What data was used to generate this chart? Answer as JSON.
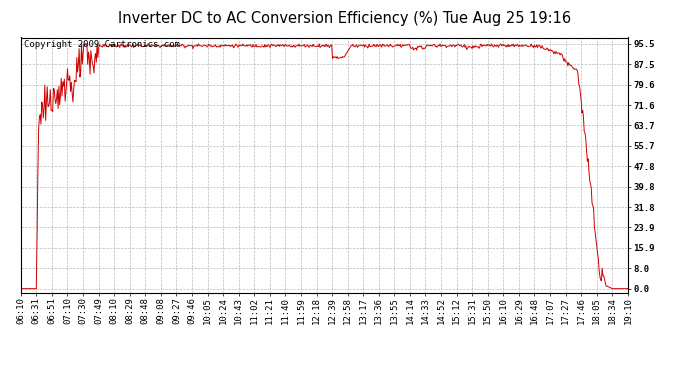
{
  "title": "Inverter DC to AC Conversion Efficiency (%) Tue Aug 25 19:16",
  "copyright": "Copyright 2009 Cartronics.com",
  "background_color": "#ffffff",
  "plot_bg_color": "#ffffff",
  "line_color": "#cc0000",
  "line_width": 0.7,
  "yticks": [
    0.0,
    8.0,
    15.9,
    23.9,
    31.8,
    39.8,
    47.8,
    55.7,
    63.7,
    71.6,
    79.6,
    87.5,
    95.5
  ],
  "ymin": -1.5,
  "ymax": 98.0,
  "grid_color": "#aaaaaa",
  "grid_style": "--",
  "title_fontsize": 10.5,
  "copyright_fontsize": 6.5,
  "tick_fontsize": 6.5,
  "xtick_labels": [
    "06:10",
    "06:31",
    "06:51",
    "07:10",
    "07:30",
    "07:49",
    "08:10",
    "08:29",
    "08:48",
    "09:08",
    "09:27",
    "09:46",
    "10:05",
    "10:24",
    "10:43",
    "11:02",
    "11:21",
    "11:40",
    "11:59",
    "12:18",
    "12:39",
    "12:58",
    "13:17",
    "13:36",
    "13:55",
    "14:14",
    "14:33",
    "14:52",
    "15:12",
    "15:31",
    "15:50",
    "16:10",
    "16:29",
    "16:48",
    "17:07",
    "17:27",
    "17:46",
    "18:05",
    "18:34",
    "19:10"
  ]
}
